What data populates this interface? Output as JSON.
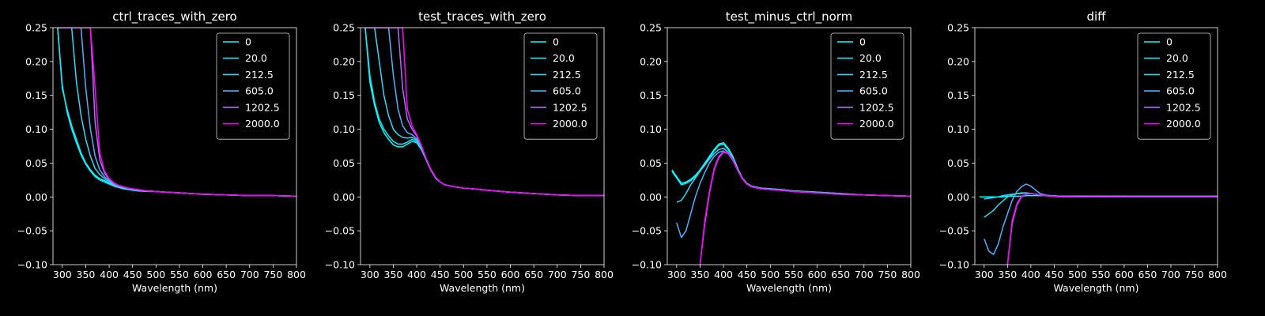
{
  "figure": {
    "background": "#000000",
    "foreground": "#ffffff"
  },
  "series_colors": [
    "#00ffff",
    "#1ae5f7",
    "#34d7f6",
    "#4eb2fb",
    "#ae6ff5",
    "#ff00ff"
  ],
  "chart_data": [
    {
      "type": "line",
      "title": "ctrl_traces_with_zero",
      "xlabel": "Wavelength (nm)",
      "ylabel": "",
      "xlim": [
        280,
        800
      ],
      "ylim": [
        -0.1,
        0.25
      ],
      "xticks": [
        "300",
        "350",
        "400",
        "450",
        "500",
        "550",
        "600",
        "650",
        "700",
        "750",
        "800"
      ],
      "yticks": [
        "−0.10",
        "−0.05",
        "0.00",
        "0.05",
        "0.10",
        "0.15",
        "0.20",
        "0.25"
      ],
      "grid": false,
      "legend": "top-right",
      "x": [
        290,
        300,
        310,
        320,
        330,
        340,
        350,
        360,
        370,
        380,
        390,
        400,
        410,
        420,
        430,
        440,
        450,
        460,
        480,
        500,
        520,
        550,
        600,
        650,
        700,
        750,
        800
      ],
      "series": [
        {
          "name": "0",
          "values": [
            0.25,
            0.16,
            0.13,
            0.105,
            0.085,
            0.065,
            0.05,
            0.04,
            0.032,
            0.027,
            0.024,
            0.02,
            0.017,
            0.015,
            0.013,
            0.012,
            0.011,
            0.01,
            0.009,
            0.008,
            0.007,
            0.006,
            0.004,
            0.003,
            0.002,
            0.002,
            0.001
          ]
        },
        {
          "name": "20.0",
          "values": [
            0.25,
            0.165,
            0.125,
            0.1,
            0.08,
            0.062,
            0.048,
            0.038,
            0.03,
            0.025,
            0.022,
            0.019,
            0.016,
            0.014,
            0.012,
            0.011,
            0.01,
            0.009,
            0.008,
            0.008,
            0.007,
            0.006,
            0.004,
            0.003,
            0.002,
            0.002,
            0.001
          ]
        },
        {
          "name": "212.5",
          "values": [
            0.25,
            0.25,
            0.25,
            0.25,
            0.17,
            0.12,
            0.085,
            0.06,
            0.042,
            0.033,
            0.027,
            0.022,
            0.018,
            0.015,
            0.013,
            0.012,
            0.011,
            0.01,
            0.009,
            0.008,
            0.007,
            0.006,
            0.004,
            0.003,
            0.002,
            0.002,
            0.001
          ]
        },
        {
          "name": "605.0",
          "values": [
            0.25,
            0.25,
            0.25,
            0.25,
            0.25,
            0.25,
            0.16,
            0.1,
            0.06,
            0.04,
            0.03,
            0.024,
            0.019,
            0.016,
            0.014,
            0.012,
            0.011,
            0.01,
            0.009,
            0.008,
            0.007,
            0.006,
            0.004,
            0.003,
            0.002,
            0.002,
            0.001
          ]
        },
        {
          "name": "1202.5",
          "values": [
            0.25,
            0.25,
            0.25,
            0.25,
            0.25,
            0.25,
            0.25,
            0.25,
            0.11,
            0.055,
            0.035,
            0.026,
            0.02,
            0.017,
            0.015,
            0.013,
            0.012,
            0.011,
            0.009,
            0.008,
            0.007,
            0.006,
            0.004,
            0.003,
            0.002,
            0.002,
            0.001
          ]
        },
        {
          "name": "2000.0",
          "values": [
            0.25,
            0.25,
            0.25,
            0.25,
            0.25,
            0.25,
            0.25,
            0.25,
            0.16,
            0.065,
            0.038,
            0.027,
            0.021,
            0.017,
            0.015,
            0.013,
            0.012,
            0.011,
            0.009,
            0.008,
            0.007,
            0.006,
            0.004,
            0.003,
            0.002,
            0.002,
            0.001
          ]
        }
      ]
    },
    {
      "type": "line",
      "title": "test_traces_with_zero",
      "xlabel": "Wavelength (nm)",
      "ylabel": "",
      "xlim": [
        280,
        800
      ],
      "ylim": [
        -0.1,
        0.25
      ],
      "xticks": [
        "300",
        "350",
        "400",
        "450",
        "500",
        "550",
        "600",
        "650",
        "700",
        "750",
        "800"
      ],
      "yticks": [
        "−0.10",
        "−0.05",
        "0.00",
        "0.05",
        "0.10",
        "0.15",
        "0.20",
        "0.25"
      ],
      "grid": false,
      "legend": "top-right",
      "x": [
        290,
        300,
        310,
        320,
        330,
        340,
        350,
        360,
        370,
        380,
        390,
        400,
        410,
        420,
        430,
        440,
        450,
        460,
        480,
        500,
        520,
        550,
        600,
        650,
        700,
        750,
        800
      ],
      "series": [
        {
          "name": "0",
          "values": [
            0.25,
            0.17,
            0.135,
            0.11,
            0.095,
            0.085,
            0.077,
            0.074,
            0.074,
            0.078,
            0.082,
            0.08,
            0.07,
            0.055,
            0.04,
            0.028,
            0.022,
            0.018,
            0.015,
            0.013,
            0.012,
            0.01,
            0.007,
            0.005,
            0.003,
            0.002,
            0.002
          ]
        },
        {
          "name": "20.0",
          "values": [
            0.25,
            0.18,
            0.14,
            0.115,
            0.1,
            0.09,
            0.082,
            0.078,
            0.078,
            0.081,
            0.085,
            0.082,
            0.071,
            0.055,
            0.04,
            0.028,
            0.022,
            0.018,
            0.015,
            0.013,
            0.012,
            0.01,
            0.007,
            0.005,
            0.003,
            0.002,
            0.002
          ]
        },
        {
          "name": "212.5",
          "values": [
            0.25,
            0.25,
            0.25,
            0.2,
            0.15,
            0.12,
            0.1,
            0.092,
            0.088,
            0.087,
            0.088,
            0.084,
            0.072,
            0.056,
            0.041,
            0.029,
            0.022,
            0.018,
            0.015,
            0.013,
            0.012,
            0.01,
            0.007,
            0.005,
            0.003,
            0.002,
            0.002
          ]
        },
        {
          "name": "605.0",
          "values": [
            0.25,
            0.25,
            0.25,
            0.25,
            0.25,
            0.25,
            0.18,
            0.13,
            0.105,
            0.095,
            0.092,
            0.086,
            0.073,
            0.056,
            0.041,
            0.029,
            0.022,
            0.018,
            0.015,
            0.013,
            0.012,
            0.01,
            0.007,
            0.005,
            0.003,
            0.002,
            0.002
          ]
        },
        {
          "name": "1202.5",
          "values": [
            0.25,
            0.25,
            0.25,
            0.25,
            0.25,
            0.25,
            0.25,
            0.25,
            0.16,
            0.115,
            0.1,
            0.09,
            0.075,
            0.057,
            0.041,
            0.029,
            0.022,
            0.018,
            0.015,
            0.013,
            0.012,
            0.01,
            0.007,
            0.005,
            0.003,
            0.002,
            0.002
          ]
        },
        {
          "name": "2000.0",
          "values": [
            0.25,
            0.25,
            0.25,
            0.25,
            0.25,
            0.25,
            0.25,
            0.25,
            0.25,
            0.13,
            0.105,
            0.092,
            0.076,
            0.057,
            0.041,
            0.029,
            0.022,
            0.018,
            0.015,
            0.013,
            0.012,
            0.01,
            0.007,
            0.005,
            0.003,
            0.002,
            0.002
          ]
        }
      ]
    },
    {
      "type": "line",
      "title": "test_minus_ctrl_norm",
      "xlabel": "Wavelength (nm)",
      "ylabel": "",
      "xlim": [
        280,
        800
      ],
      "ylim": [
        -0.1,
        0.25
      ],
      "xticks": [
        "300",
        "350",
        "400",
        "450",
        "500",
        "550",
        "600",
        "650",
        "700",
        "750",
        "800"
      ],
      "yticks": [
        "−0.10",
        "−0.05",
        "0.00",
        "0.05",
        "0.10",
        "0.15",
        "0.20",
        "0.25"
      ],
      "grid": false,
      "legend": "top-right",
      "x": [
        290,
        300,
        310,
        320,
        330,
        340,
        350,
        360,
        370,
        380,
        390,
        400,
        410,
        420,
        430,
        440,
        450,
        460,
        480,
        500,
        520,
        550,
        600,
        650,
        700,
        750,
        800
      ],
      "series": [
        {
          "name": "0",
          "values": [
            0.04,
            0.03,
            0.02,
            0.022,
            0.026,
            0.032,
            0.04,
            0.05,
            0.06,
            0.07,
            0.078,
            0.08,
            0.072,
            0.06,
            0.043,
            0.028,
            0.02,
            0.016,
            0.013,
            0.012,
            0.011,
            0.009,
            0.007,
            0.005,
            0.003,
            0.002,
            0.001
          ]
        },
        {
          "name": "20.0",
          "values": [
            0.038,
            0.028,
            0.018,
            0.02,
            0.024,
            0.03,
            0.038,
            0.048,
            0.058,
            0.068,
            0.076,
            0.078,
            0.07,
            0.058,
            0.042,
            0.028,
            0.02,
            0.016,
            0.013,
            0.012,
            0.011,
            0.009,
            0.007,
            0.005,
            0.003,
            0.002,
            0.001
          ]
        },
        {
          "name": "212.5",
          "values": [
            null,
            -0.008,
            -0.005,
            0.005,
            0.018,
            0.028,
            0.038,
            0.047,
            0.056,
            0.064,
            0.07,
            0.072,
            0.066,
            0.055,
            0.04,
            0.027,
            0.019,
            0.015,
            0.012,
            0.011,
            0.01,
            0.008,
            0.006,
            0.004,
            0.003,
            0.002,
            0.001
          ]
        },
        {
          "name": "605.0",
          "values": [
            null,
            -0.038,
            -0.06,
            -0.05,
            -0.025,
            0.0,
            0.02,
            0.036,
            0.05,
            0.06,
            0.066,
            0.068,
            0.064,
            0.054,
            0.04,
            0.027,
            0.019,
            0.015,
            0.012,
            0.011,
            0.01,
            0.008,
            0.006,
            0.004,
            0.003,
            0.002,
            0.001
          ]
        },
        {
          "name": "1202.5",
          "values": [
            null,
            null,
            null,
            null,
            null,
            null,
            -0.1,
            -0.04,
            0.005,
            0.04,
            0.058,
            0.066,
            0.064,
            0.055,
            0.04,
            0.027,
            0.019,
            0.015,
            0.012,
            0.011,
            0.01,
            0.008,
            0.006,
            0.004,
            0.003,
            0.002,
            0.001
          ]
        },
        {
          "name": "2000.0",
          "values": [
            null,
            null,
            null,
            null,
            null,
            null,
            -0.1,
            -0.035,
            0.008,
            0.042,
            0.06,
            0.067,
            0.065,
            0.055,
            0.04,
            0.027,
            0.019,
            0.015,
            0.012,
            0.011,
            0.01,
            0.008,
            0.006,
            0.004,
            0.003,
            0.002,
            0.001
          ]
        }
      ]
    },
    {
      "type": "line",
      "title": "diff",
      "xlabel": "Wavelength (nm)",
      "ylabel": "",
      "xlim": [
        280,
        800
      ],
      "ylim": [
        -0.1,
        0.25
      ],
      "xticks": [
        "300",
        "350",
        "400",
        "450",
        "500",
        "550",
        "600",
        "650",
        "700",
        "750",
        "800"
      ],
      "yticks": [
        "−0.10",
        "−0.05",
        "0.00",
        "0.05",
        "0.10",
        "0.15",
        "0.20",
        "0.25"
      ],
      "grid": false,
      "legend": "top-right",
      "x": [
        290,
        300,
        310,
        320,
        330,
        340,
        350,
        360,
        370,
        380,
        390,
        400,
        410,
        420,
        430,
        440,
        450,
        460,
        480,
        500,
        520,
        550,
        600,
        650,
        700,
        750,
        800
      ],
      "series": [
        {
          "name": "0",
          "values": [
            0.0,
            0.0,
            0.0,
            0.0,
            0.0,
            0.0,
            0.001,
            0.001,
            0.001,
            0.001,
            0.002,
            0.002,
            0.002,
            0.002,
            0.002,
            0.002,
            0.002,
            0.001,
            0.001,
            0.001,
            0.001,
            0.001,
            0.001,
            0.001,
            0.001,
            0.001,
            0.001
          ]
        },
        {
          "name": "20.0",
          "values": [
            null,
            -0.003,
            -0.002,
            -0.001,
            0.0,
            0.002,
            0.003,
            0.004,
            0.005,
            0.005,
            0.006,
            0.005,
            0.004,
            0.003,
            0.002,
            0.002,
            0.001,
            0.001,
            0.001,
            0.001,
            0.001,
            0.001,
            0.001,
            0.0,
            0.0,
            0.0,
            0.0
          ]
        },
        {
          "name": "212.5",
          "values": [
            null,
            -0.03,
            -0.025,
            -0.02,
            -0.012,
            -0.006,
            0.0,
            0.003,
            0.005,
            0.006,
            0.006,
            0.005,
            0.004,
            0.003,
            0.002,
            0.002,
            0.001,
            0.001,
            0.001,
            0.001,
            0.001,
            0.001,
            0.0,
            0.0,
            0.0,
            0.0,
            0.0
          ]
        },
        {
          "name": "605.0",
          "values": [
            null,
            -0.062,
            -0.08,
            -0.085,
            -0.07,
            -0.045,
            -0.025,
            -0.005,
            0.008,
            0.015,
            0.019,
            0.016,
            0.01,
            0.005,
            0.003,
            0.002,
            0.001,
            0.001,
            0.001,
            0.0,
            0.0,
            0.0,
            0.0,
            0.0,
            0.0,
            0.0,
            0.0
          ]
        },
        {
          "name": "1202.5",
          "values": [
            null,
            null,
            null,
            null,
            null,
            null,
            -0.1,
            -0.04,
            -0.012,
            0.0,
            0.004,
            0.005,
            0.004,
            0.003,
            0.002,
            0.001,
            0.001,
            0.0,
            0.0,
            0.0,
            0.0,
            0.0,
            0.0,
            0.0,
            0.0,
            0.0,
            0.0
          ]
        },
        {
          "name": "2000.0",
          "values": [
            null,
            null,
            null,
            null,
            null,
            null,
            -0.1,
            -0.035,
            -0.01,
            0.001,
            0.004,
            0.005,
            0.004,
            0.003,
            0.002,
            0.001,
            0.001,
            0.0,
            0.0,
            0.0,
            0.0,
            0.0,
            0.0,
            0.0,
            0.0,
            0.0,
            0.0
          ]
        }
      ]
    }
  ]
}
